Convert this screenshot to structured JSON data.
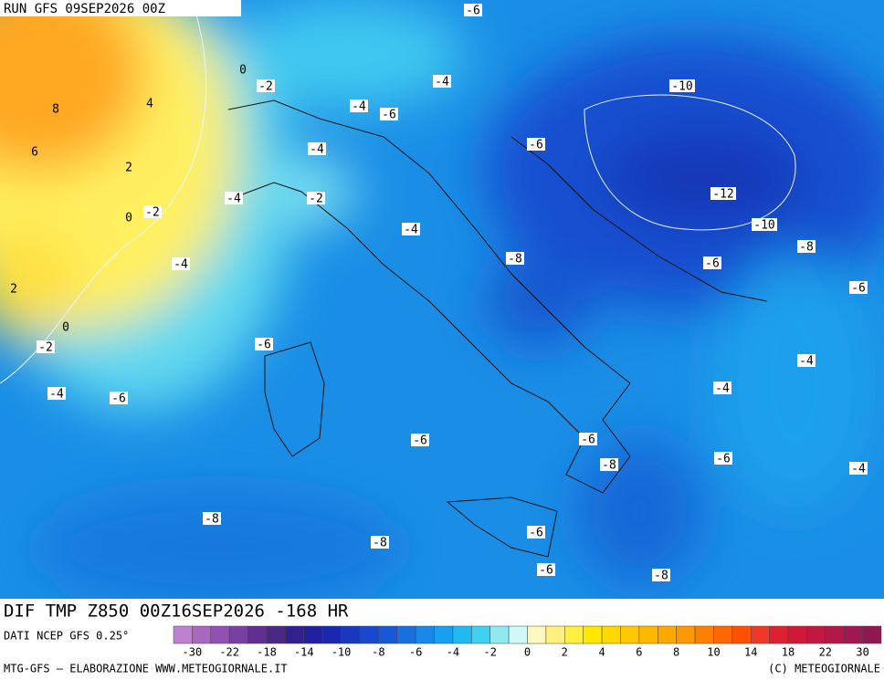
{
  "header": {
    "run": "RUN GFS 09SEP2026 00Z"
  },
  "map": {
    "contour_labels": [
      -6,
      0,
      -2,
      -4,
      4,
      8,
      -4,
      -6,
      -10,
      -6,
      -4,
      6,
      2,
      -12,
      -4,
      -2,
      -2,
      0,
      -10,
      -4,
      -8,
      -8,
      -4,
      -6,
      2,
      -6,
      0,
      -2,
      -6,
      -4,
      -4,
      -6,
      -4,
      -6,
      -6,
      -6,
      -8,
      -4,
      -8,
      -6,
      -8,
      -6,
      -8
    ]
  },
  "title": "DIF TMP Z850 00Z16SEP2026 -168 HR",
  "source": "DATI NCEP GFS 0.25°",
  "legend": {
    "colors": [
      "#c080d0",
      "#a868c0",
      "#9050b0",
      "#7840a0",
      "#603090",
      "#482880",
      "#302090",
      "#2020a0",
      "#1828b0",
      "#1838c0",
      "#1848d0",
      "#1858d8",
      "#1870e0",
      "#1888ea",
      "#18a0f0",
      "#20b8f0",
      "#40d0f0",
      "#90e8f0",
      "#d0f8f8",
      "#fff8c0",
      "#fff080",
      "#fff040",
      "#ffe800",
      "#ffd800",
      "#ffc800",
      "#ffb800",
      "#ffa800",
      "#ff9800",
      "#ff8000",
      "#ff6800",
      "#ff5000",
      "#f03828",
      "#e02030",
      "#d01838",
      "#c01840",
      "#b01848",
      "#a01850",
      "#901850"
    ],
    "labels": [
      -30,
      -22,
      -18,
      -14,
      -10,
      -8,
      -6,
      -4,
      -2,
      0,
      2,
      4,
      6,
      8,
      10,
      14,
      18,
      22,
      30
    ]
  },
  "footer": {
    "left": "MTG-GFS — ELABORAZIONE WWW.METEOGIORNALE.IT",
    "right": "(C) METEOGIORNALE"
  }
}
